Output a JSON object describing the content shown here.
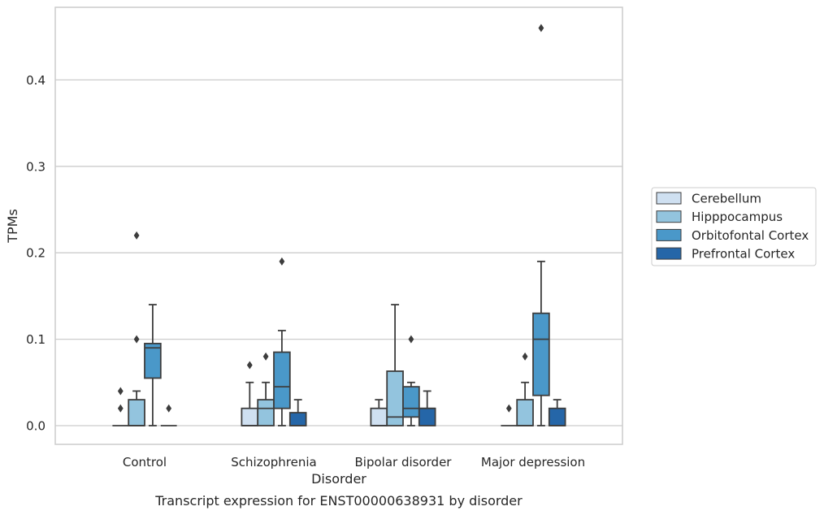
{
  "chart_data": {
    "type": "box",
    "caption": "Transcript expression for ENST00000638931 by disorder",
    "xlabel": "Disorder",
    "ylabel": "TPMs",
    "ylim": [
      -0.023,
      0.483
    ],
    "yticks": [
      "0.0",
      "0.1",
      "0.2",
      "0.3",
      "0.4"
    ],
    "ytick_values": [
      0.0,
      0.1,
      0.2,
      0.3,
      0.4
    ],
    "grid": "horizontal",
    "legend_position": "right",
    "categories": [
      "Control",
      "Schizophrenia",
      "Bipolar disorder",
      "Major depression"
    ],
    "series": [
      {
        "name": "Cerebellum",
        "color": "#cfe0f1",
        "boxes": [
          {
            "q1": 0.0,
            "median": 0.0,
            "q3": 0.0,
            "whisker_low": 0.0,
            "whisker_high": 0.0,
            "outliers": [
              0.02,
              0.04
            ]
          },
          {
            "q1": 0.0,
            "median": 0.0,
            "q3": 0.02,
            "whisker_low": 0.0,
            "whisker_high": 0.05,
            "outliers": [
              0.07
            ]
          },
          {
            "q1": 0.0,
            "median": 0.0,
            "q3": 0.02,
            "whisker_low": 0.0,
            "whisker_high": 0.03,
            "outliers": []
          },
          {
            "q1": 0.0,
            "median": 0.0,
            "q3": 0.0,
            "whisker_low": 0.0,
            "whisker_high": 0.0,
            "outliers": [
              0.02
            ]
          }
        ]
      },
      {
        "name": "Hipppocampus",
        "color": "#93c4de",
        "boxes": [
          {
            "q1": 0.0,
            "median": 0.0,
            "q3": 0.03,
            "whisker_low": 0.0,
            "whisker_high": 0.04,
            "outliers": [
              0.1,
              0.22
            ]
          },
          {
            "q1": 0.0,
            "median": 0.02,
            "q3": 0.03,
            "whisker_low": 0.0,
            "whisker_high": 0.05,
            "outliers": [
              0.08
            ]
          },
          {
            "q1": 0.0,
            "median": 0.01,
            "q3": 0.063,
            "whisker_low": 0.0,
            "whisker_high": 0.14,
            "outliers": []
          },
          {
            "q1": 0.0,
            "median": 0.0,
            "q3": 0.03,
            "whisker_low": 0.0,
            "whisker_high": 0.05,
            "outliers": [
              0.08
            ]
          }
        ]
      },
      {
        "name": "Orbitofontal Cortex",
        "color": "#4a98c9",
        "boxes": [
          {
            "q1": 0.055,
            "median": 0.09,
            "q3": 0.095,
            "whisker_low": 0.0,
            "whisker_high": 0.14,
            "outliers": []
          },
          {
            "q1": 0.02,
            "median": 0.045,
            "q3": 0.085,
            "whisker_low": 0.0,
            "whisker_high": 0.11,
            "outliers": [
              0.19
            ]
          },
          {
            "q1": 0.01,
            "median": 0.02,
            "q3": 0.045,
            "whisker_low": 0.0,
            "whisker_high": 0.05,
            "outliers": [
              0.1
            ]
          },
          {
            "q1": 0.035,
            "median": 0.1,
            "q3": 0.13,
            "whisker_low": 0.0,
            "whisker_high": 0.19,
            "outliers": [
              0.46
            ]
          }
        ]
      },
      {
        "name": "Prefrontal Cortex",
        "color": "#2566a8",
        "boxes": [
          {
            "q1": 0.0,
            "median": 0.0,
            "q3": 0.0,
            "whisker_low": 0.0,
            "whisker_high": 0.0,
            "outliers": [
              0.02
            ]
          },
          {
            "q1": 0.0,
            "median": 0.0,
            "q3": 0.015,
            "whisker_low": 0.0,
            "whisker_high": 0.03,
            "outliers": []
          },
          {
            "q1": 0.0,
            "median": 0.02,
            "q3": 0.02,
            "whisker_low": 0.0,
            "whisker_high": 0.04,
            "outliers": []
          },
          {
            "q1": 0.0,
            "median": 0.0,
            "q3": 0.02,
            "whisker_low": 0.0,
            "whisker_high": 0.03,
            "outliers": []
          }
        ]
      }
    ]
  }
}
